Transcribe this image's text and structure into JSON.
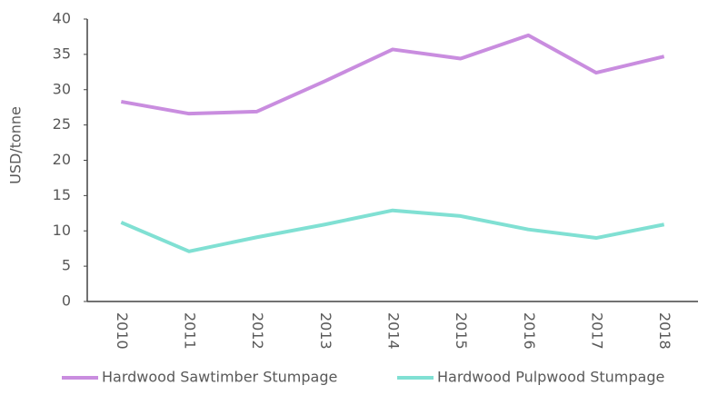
{
  "chart_data": {
    "type": "line",
    "y_label": "USD/tonne",
    "categories": [
      "2010",
      "2011",
      "2012",
      "2013",
      "2014",
      "2015",
      "2016",
      "2017",
      "2018"
    ],
    "series": [
      {
        "name": "Hardwood Sawtimber Stumpage",
        "color": "#c98ddf",
        "values": [
          28.3,
          26.6,
          26.9,
          31.2,
          35.7,
          34.4,
          37.7,
          32.4,
          34.7
        ]
      },
      {
        "name": "Hardwood Pulpwood Stumpage",
        "color": "#80e0d3",
        "values": [
          11.2,
          7.1,
          9.1,
          10.9,
          12.9,
          12.1,
          10.2,
          9.0,
          10.9
        ]
      }
    ],
    "ylim": [
      0,
      40
    ],
    "yticks": [
      0,
      5,
      10,
      15,
      20,
      25,
      30,
      35,
      40
    ],
    "grid": false
  }
}
